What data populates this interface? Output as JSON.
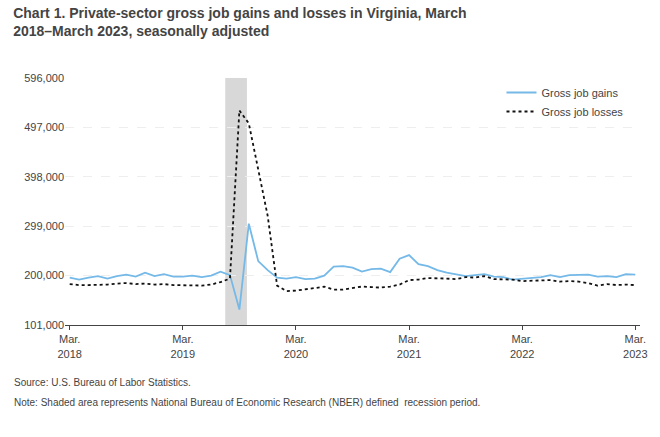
{
  "chart_data": {
    "type": "line",
    "title": "Chart 1. Private-sector gross job gains and losses in Virginia, March\n2018–March 2023, seasonally adjusted",
    "annotations": [
      "Source: U.S. Bureau of Labor Statistics.",
      "Note: Shaded area represents National Bureau of Economic Research (NBER) defined  recession period."
    ],
    "categories": [
      "Mar.\n2018",
      null,
      null,
      null,
      null,
      null,
      null,
      null,
      null,
      null,
      null,
      null,
      "Mar.\n2019",
      null,
      null,
      null,
      null,
      null,
      null,
      null,
      null,
      null,
      null,
      null,
      "Mar.\n2020",
      null,
      null,
      null,
      null,
      null,
      null,
      null,
      null,
      null,
      null,
      null,
      "Mar.\n2021",
      null,
      null,
      null,
      null,
      null,
      null,
      null,
      null,
      null,
      null,
      null,
      "Mar.\n2022",
      null,
      null,
      null,
      null,
      null,
      null,
      null,
      null,
      null,
      null,
      null,
      "Mar.\n2023"
    ],
    "series": [
      {
        "name": "Gross job gains",
        "color": "#74b9e8",
        "line_style": "solid",
        "values": [
          196000,
          192000,
          196000,
          199000,
          194000,
          199000,
          202000,
          198000,
          206000,
          199000,
          203000,
          198000,
          198000,
          200000,
          197000,
          200000,
          208000,
          201000,
          132000,
          304000,
          229000,
          211000,
          196000,
          194000,
          197000,
          193000,
          194000,
          200000,
          218000,
          219000,
          216000,
          208000,
          213000,
          214000,
          207000,
          234000,
          241000,
          223000,
          219000,
          211000,
          206000,
          203000,
          199000,
          201000,
          203000,
          198000,
          197000,
          192000,
          194000,
          196000,
          197000,
          201000,
          197000,
          201000,
          202000,
          202000,
          198000,
          199000,
          197000,
          203000,
          202000
        ]
      },
      {
        "name": "Gross job losses",
        "color": "#111111",
        "line_style": "dotted",
        "values": [
          183000,
          181000,
          181000,
          181000,
          182000,
          184000,
          185000,
          183000,
          184000,
          182000,
          183000,
          181000,
          181000,
          181000,
          180000,
          182000,
          187000,
          194000,
          531000,
          505000,
          410000,
          320000,
          180000,
          169000,
          170000,
          172000,
          175000,
          178000,
          172000,
          172000,
          175000,
          178000,
          177000,
          176000,
          178000,
          182000,
          191000,
          192000,
          195000,
          195000,
          194000,
          193000,
          197000,
          196000,
          199000,
          193000,
          193000,
          192000,
          189000,
          190000,
          191000,
          191000,
          188000,
          189000,
          188000,
          185000,
          180000,
          183000,
          181000,
          182000,
          181000
        ]
      }
    ],
    "shaded_span": {
      "from": 16.5,
      "to": 18.8,
      "color": "#d8d8d8"
    },
    "ylim": [
      101000,
      596000
    ],
    "yticks": [
      {
        "value": 101000,
        "label": "101,000"
      },
      {
        "value": 200000,
        "label": "200,000"
      },
      {
        "value": 299000,
        "label": "299,000"
      },
      {
        "value": 398000,
        "label": "398,000"
      },
      {
        "value": 497000,
        "label": "497,000"
      },
      {
        "value": 596000,
        "label": "596,000"
      }
    ],
    "grid": true,
    "legend": "upper right"
  }
}
